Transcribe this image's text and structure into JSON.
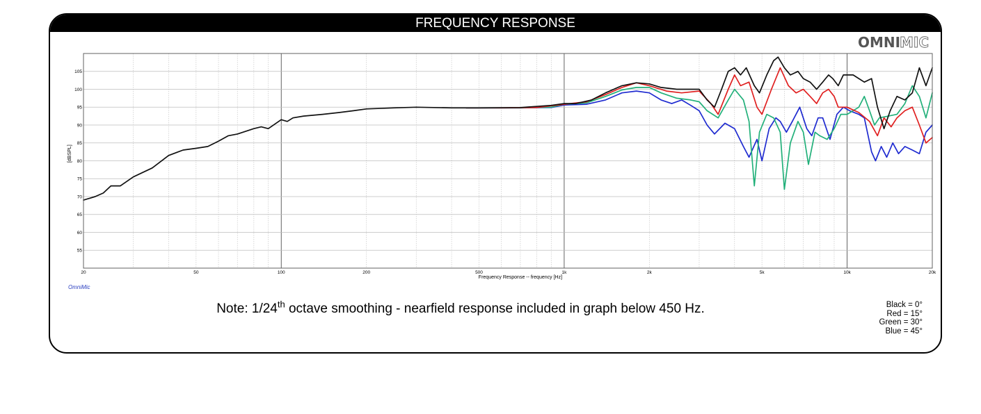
{
  "title": "FREQUENCY RESPONSE",
  "logo": {
    "bold": "OMNI",
    "outline": "MIC"
  },
  "watermark": "OmniMic",
  "note": {
    "prefix": "Note: 1/24",
    "sup": "th",
    "suffix": " octave smoothing - nearfield response included in graph below 450 Hz."
  },
  "legend": [
    "Black = 0°",
    "Red = 15°",
    "Green = 30°",
    "Blue = 45°"
  ],
  "colors": {
    "black": "#111111",
    "red": "#e02020",
    "green": "#22b07a",
    "blue": "#1f2bd0",
    "grid": "#c8c8c8",
    "grid_major": "#505050"
  },
  "chart_data": {
    "type": "line",
    "xscale": "log",
    "xlim": [
      20,
      20000
    ],
    "ylim": [
      50,
      110
    ],
    "xlabel": "Frequency Response -- frequency [Hz]",
    "ylabel": "[dBSPL]",
    "x_ticks": [
      {
        "v": 20,
        "label": "20"
      },
      {
        "v": 50,
        "label": "50"
      },
      {
        "v": 100,
        "label": "100"
      },
      {
        "v": 200,
        "label": "200"
      },
      {
        "v": 500,
        "label": "500"
      },
      {
        "v": 1000,
        "label": "1k"
      },
      {
        "v": 2000,
        "label": "2k"
      },
      {
        "v": 5000,
        "label": "5k"
      },
      {
        "v": 10000,
        "label": "10k"
      },
      {
        "v": 20000,
        "label": "20k"
      }
    ],
    "y_ticks": [
      55,
      60,
      65,
      70,
      75,
      80,
      85,
      90,
      95,
      100,
      105
    ],
    "grid": true,
    "series": [
      {
        "name": "Black = 0°",
        "color": "#111111",
        "points": [
          [
            20,
            69
          ],
          [
            22,
            70
          ],
          [
            23.5,
            71
          ],
          [
            25,
            73
          ],
          [
            27,
            73
          ],
          [
            30,
            75.5
          ],
          [
            35,
            78
          ],
          [
            40,
            81.5
          ],
          [
            45,
            83
          ],
          [
            50,
            83.5
          ],
          [
            55,
            84
          ],
          [
            60,
            85.5
          ],
          [
            65,
            87
          ],
          [
            70,
            87.5
          ],
          [
            80,
            89
          ],
          [
            85,
            89.5
          ],
          [
            90,
            89
          ],
          [
            100,
            91.5
          ],
          [
            105,
            91
          ],
          [
            110,
            92
          ],
          [
            120,
            92.5
          ],
          [
            140,
            93
          ],
          [
            160,
            93.5
          ],
          [
            180,
            94
          ],
          [
            200,
            94.5
          ],
          [
            250,
            94.8
          ],
          [
            300,
            95
          ],
          [
            400,
            94.8
          ],
          [
            500,
            94.8
          ],
          [
            700,
            94.9
          ],
          [
            900,
            95.5
          ],
          [
            1000,
            96
          ],
          [
            1100,
            96
          ],
          [
            1250,
            97
          ],
          [
            1400,
            99
          ],
          [
            1600,
            101
          ],
          [
            1800,
            101.8
          ],
          [
            2000,
            101.5
          ],
          [
            2200,
            100.5
          ],
          [
            2500,
            100
          ],
          [
            2800,
            100
          ],
          [
            3000,
            100
          ],
          [
            3200,
            97
          ],
          [
            3400,
            95
          ],
          [
            3600,
            100
          ],
          [
            3800,
            105
          ],
          [
            4000,
            106
          ],
          [
            4200,
            104
          ],
          [
            4400,
            106
          ],
          [
            4700,
            101
          ],
          [
            4900,
            99
          ],
          [
            5200,
            104
          ],
          [
            5500,
            108
          ],
          [
            5700,
            109
          ],
          [
            6000,
            106
          ],
          [
            6300,
            104
          ],
          [
            6700,
            105
          ],
          [
            7000,
            103
          ],
          [
            7400,
            102
          ],
          [
            7800,
            100
          ],
          [
            8200,
            102
          ],
          [
            8600,
            104
          ],
          [
            8900,
            103
          ],
          [
            9300,
            101
          ],
          [
            9700,
            104
          ],
          [
            10000,
            104
          ],
          [
            10500,
            104
          ],
          [
            11000,
            103
          ],
          [
            11500,
            102
          ],
          [
            12200,
            103
          ],
          [
            12800,
            95
          ],
          [
            13500,
            89
          ],
          [
            14200,
            94
          ],
          [
            15000,
            98
          ],
          [
            16000,
            97
          ],
          [
            17000,
            99
          ],
          [
            18000,
            106
          ],
          [
            19000,
            101
          ],
          [
            20000,
            106
          ]
        ]
      },
      {
        "name": "Red = 15°",
        "color": "#e02020",
        "points": [
          [
            450,
            94.8
          ],
          [
            600,
            94.8
          ],
          [
            800,
            94.9
          ],
          [
            1000,
            95.8
          ],
          [
            1200,
            96.5
          ],
          [
            1400,
            98.5
          ],
          [
            1600,
            100.5
          ],
          [
            1800,
            101.8
          ],
          [
            2000,
            101
          ],
          [
            2300,
            99.5
          ],
          [
            2600,
            99
          ],
          [
            3000,
            99.5
          ],
          [
            3300,
            96
          ],
          [
            3500,
            93
          ],
          [
            3800,
            100
          ],
          [
            4000,
            104
          ],
          [
            4200,
            101
          ],
          [
            4500,
            102
          ],
          [
            4800,
            95
          ],
          [
            5000,
            93
          ],
          [
            5400,
            100
          ],
          [
            5800,
            106
          ],
          [
            6200,
            101
          ],
          [
            6600,
            99
          ],
          [
            7000,
            100
          ],
          [
            7400,
            98
          ],
          [
            7800,
            96
          ],
          [
            8200,
            99
          ],
          [
            8600,
            100
          ],
          [
            9000,
            98
          ],
          [
            9300,
            95
          ],
          [
            10000,
            95
          ],
          [
            11000,
            93.5
          ],
          [
            12000,
            91
          ],
          [
            12800,
            87
          ],
          [
            13500,
            92
          ],
          [
            14300,
            89.5
          ],
          [
            15000,
            92
          ],
          [
            16000,
            94
          ],
          [
            17000,
            95
          ],
          [
            18000,
            90
          ],
          [
            19000,
            85
          ],
          [
            20000,
            86.5
          ]
        ]
      },
      {
        "name": "Green = 30°",
        "color": "#22b07a",
        "points": [
          [
            450,
            94.8
          ],
          [
            700,
            94.8
          ],
          [
            900,
            95
          ],
          [
            1000,
            95.8
          ],
          [
            1200,
            96.2
          ],
          [
            1400,
            98
          ],
          [
            1600,
            99.8
          ],
          [
            1800,
            100.5
          ],
          [
            2000,
            100.5
          ],
          [
            2200,
            99
          ],
          [
            2500,
            97.5
          ],
          [
            2800,
            97
          ],
          [
            3000,
            96.5
          ],
          [
            3200,
            94
          ],
          [
            3500,
            92
          ],
          [
            3800,
            97
          ],
          [
            4000,
            100
          ],
          [
            4300,
            97
          ],
          [
            4500,
            91
          ],
          [
            4700,
            73
          ],
          [
            4900,
            88
          ],
          [
            5200,
            93
          ],
          [
            5500,
            92
          ],
          [
            5800,
            88
          ],
          [
            6000,
            72
          ],
          [
            6300,
            85
          ],
          [
            6700,
            91
          ],
          [
            7000,
            88
          ],
          [
            7300,
            79
          ],
          [
            7700,
            88
          ],
          [
            8000,
            87
          ],
          [
            8500,
            86
          ],
          [
            9000,
            89
          ],
          [
            9500,
            93
          ],
          [
            10000,
            93
          ],
          [
            11000,
            95
          ],
          [
            11500,
            98
          ],
          [
            12000,
            94
          ],
          [
            12500,
            90
          ],
          [
            13000,
            92
          ],
          [
            14000,
            92.5
          ],
          [
            15000,
            93
          ],
          [
            16000,
            96
          ],
          [
            17000,
            101
          ],
          [
            18000,
            98
          ],
          [
            19000,
            92
          ],
          [
            20000,
            99
          ]
        ]
      },
      {
        "name": "Blue = 45°",
        "color": "#1f2bd0",
        "points": [
          [
            450,
            94.8
          ],
          [
            700,
            94.8
          ],
          [
            900,
            94.9
          ],
          [
            1000,
            95.6
          ],
          [
            1200,
            95.8
          ],
          [
            1400,
            97
          ],
          [
            1600,
            99
          ],
          [
            1800,
            99.5
          ],
          [
            2000,
            99
          ],
          [
            2200,
            97
          ],
          [
            2400,
            96
          ],
          [
            2600,
            97
          ],
          [
            2800,
            95.5
          ],
          [
            3000,
            94
          ],
          [
            3200,
            90
          ],
          [
            3400,
            87.5
          ],
          [
            3700,
            90.5
          ],
          [
            4000,
            89
          ],
          [
            4300,
            84
          ],
          [
            4500,
            81
          ],
          [
            4800,
            86
          ],
          [
            5000,
            80
          ],
          [
            5300,
            89
          ],
          [
            5600,
            92
          ],
          [
            5800,
            91
          ],
          [
            6100,
            88
          ],
          [
            6400,
            91
          ],
          [
            6800,
            95
          ],
          [
            7200,
            89
          ],
          [
            7500,
            87
          ],
          [
            7900,
            92
          ],
          [
            8200,
            92
          ],
          [
            8700,
            86
          ],
          [
            9200,
            93
          ],
          [
            9700,
            95
          ],
          [
            10200,
            94
          ],
          [
            11000,
            93
          ],
          [
            11500,
            92
          ],
          [
            12200,
            82.5
          ],
          [
            12600,
            80
          ],
          [
            13200,
            84
          ],
          [
            13800,
            81
          ],
          [
            14500,
            85
          ],
          [
            15200,
            82
          ],
          [
            16000,
            84
          ],
          [
            17000,
            83
          ],
          [
            18000,
            82
          ],
          [
            19000,
            88
          ],
          [
            20000,
            90
          ]
        ]
      }
    ]
  }
}
